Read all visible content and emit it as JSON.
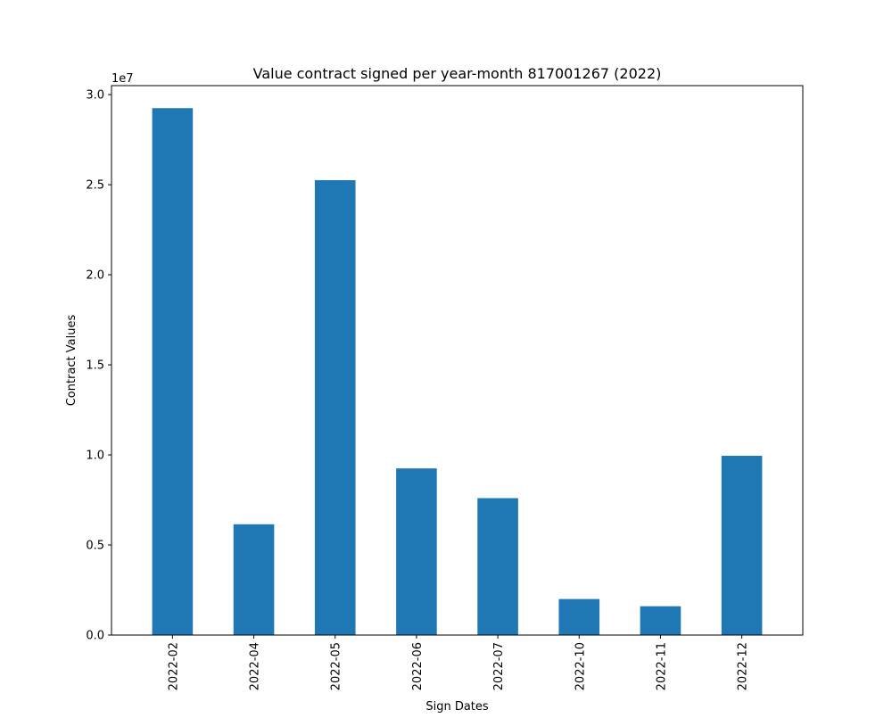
{
  "chart_data": {
    "type": "bar",
    "title": "Value contract signed per year-month 817001267 (2022)",
    "xlabel": "Sign Dates",
    "ylabel": "Contract Values",
    "categories": [
      "2022-02",
      "2022-04",
      "2022-05",
      "2022-06",
      "2022-07",
      "2022-10",
      "2022-11",
      "2022-12"
    ],
    "series": [
      {
        "values": [
          29250000,
          6150000,
          25250000,
          9250000,
          7600000,
          2000000,
          1600000,
          9950000
        ]
      }
    ],
    "ylim": [
      0,
      30500000
    ],
    "yticks": [
      0,
      5000000,
      10000000,
      15000000,
      20000000,
      25000000,
      30000000
    ],
    "ytick_labels": [
      "0.0",
      "0.5",
      "1.0",
      "1.5",
      "2.0",
      "2.5",
      "3.0"
    ],
    "y_offset_label": "1e7",
    "bar_color": "#1f77b4",
    "grid": false,
    "legend": false
  }
}
